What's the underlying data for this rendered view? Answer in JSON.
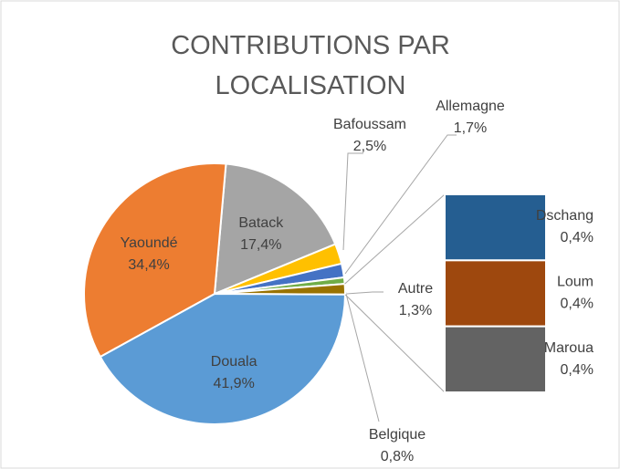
{
  "chart_data": {
    "type": "pie-of-bar",
    "title": "CONTRIBUTIONS PAR LOCALISATION",
    "categories": [
      "Batack",
      "Bafoussam",
      "Allemagne",
      "Belgique",
      "Autre",
      "Douala",
      "Yaoundé"
    ],
    "values": [
      17.4,
      2.5,
      1.7,
      0.8,
      1.3,
      41.9,
      34.4
    ],
    "value_labels": [
      "17,4%",
      "2,5%",
      "1,7%",
      "0,8%",
      "1,3%",
      "41,9%",
      "34,4%"
    ],
    "colors": [
      "#a5a5a5",
      "#ffc000",
      "#4472c4",
      "#70ad47",
      "#997300",
      "#5b9bd5",
      "#ed7d31"
    ],
    "bar": {
      "categories": [
        "Dschang",
        "Loum",
        "Maroua"
      ],
      "values": [
        0.4,
        0.4,
        0.4
      ],
      "value_labels": [
        "0,4%",
        "0,4%",
        "0,4%"
      ],
      "colors": [
        "#255e91",
        "#9e480e",
        "#636363"
      ]
    }
  }
}
